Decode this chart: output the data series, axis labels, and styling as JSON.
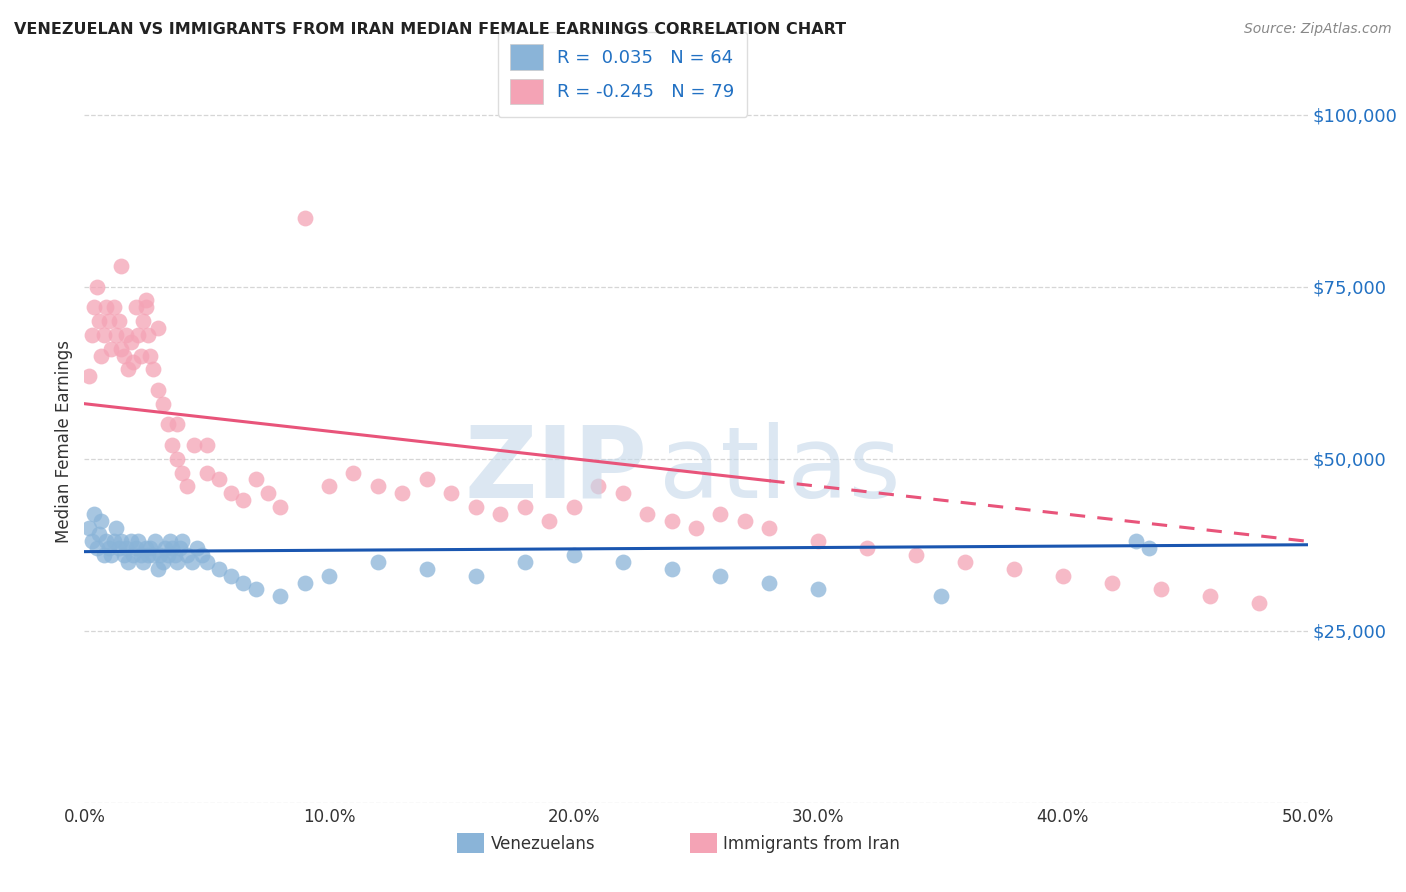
{
  "title": "VENEZUELAN VS IMMIGRANTS FROM IRAN MEDIAN FEMALE EARNINGS CORRELATION CHART",
  "source": "Source: ZipAtlas.com",
  "ylabel": "Median Female Earnings",
  "yticks": [
    0,
    25000,
    50000,
    75000,
    100000
  ],
  "ytick_labels": [
    "",
    "$25,000",
    "$50,000",
    "$75,000",
    "$100,000"
  ],
  "xlim": [
    0.0,
    0.5
  ],
  "ylim": [
    0,
    105000
  ],
  "venezuelans_color": "#8ab4d8",
  "iran_color": "#f4a3b5",
  "trendline_venezuela_color": "#1a56b0",
  "trendline_iran_color": "#e8547a",
  "watermark_zip": "ZIP",
  "watermark_atlas": "atlas",
  "background_color": "#ffffff",
  "grid_color": "#cccccc",
  "venezuelans_x": [
    0.002,
    0.003,
    0.004,
    0.005,
    0.006,
    0.007,
    0.008,
    0.009,
    0.01,
    0.011,
    0.012,
    0.013,
    0.014,
    0.015,
    0.016,
    0.017,
    0.018,
    0.019,
    0.02,
    0.021,
    0.022,
    0.023,
    0.024,
    0.025,
    0.026,
    0.027,
    0.028,
    0.029,
    0.03,
    0.031,
    0.032,
    0.033,
    0.034,
    0.035,
    0.036,
    0.037,
    0.038,
    0.039,
    0.04,
    0.042,
    0.044,
    0.046,
    0.048,
    0.05,
    0.055,
    0.06,
    0.065,
    0.07,
    0.08,
    0.09,
    0.1,
    0.12,
    0.14,
    0.16,
    0.18,
    0.2,
    0.22,
    0.24,
    0.26,
    0.28,
    0.3,
    0.35,
    0.43,
    0.435
  ],
  "venezuelans_y": [
    40000,
    38000,
    42000,
    37000,
    39000,
    41000,
    36000,
    38000,
    37000,
    36000,
    38000,
    40000,
    37000,
    38000,
    36000,
    37000,
    35000,
    38000,
    36000,
    37000,
    38000,
    36000,
    35000,
    37000,
    36000,
    37000,
    36000,
    38000,
    34000,
    36000,
    35000,
    37000,
    36000,
    38000,
    37000,
    36000,
    35000,
    37000,
    38000,
    36000,
    35000,
    37000,
    36000,
    35000,
    34000,
    33000,
    32000,
    31000,
    30000,
    32000,
    33000,
    35000,
    34000,
    33000,
    35000,
    36000,
    35000,
    34000,
    33000,
    32000,
    31000,
    30000,
    38000,
    37000
  ],
  "iran_x": [
    0.002,
    0.003,
    0.004,
    0.005,
    0.006,
    0.007,
    0.008,
    0.009,
    0.01,
    0.011,
    0.012,
    0.013,
    0.014,
    0.015,
    0.016,
    0.017,
    0.018,
    0.019,
    0.02,
    0.021,
    0.022,
    0.023,
    0.024,
    0.025,
    0.026,
    0.027,
    0.028,
    0.03,
    0.032,
    0.034,
    0.036,
    0.038,
    0.04,
    0.042,
    0.045,
    0.05,
    0.055,
    0.06,
    0.065,
    0.07,
    0.075,
    0.08,
    0.09,
    0.1,
    0.11,
    0.12,
    0.13,
    0.14,
    0.15,
    0.16,
    0.17,
    0.18,
    0.19,
    0.2,
    0.21,
    0.22,
    0.23,
    0.24,
    0.25,
    0.26,
    0.27,
    0.28,
    0.3,
    0.32,
    0.34,
    0.36,
    0.38,
    0.4,
    0.42,
    0.44,
    0.46,
    0.48,
    0.015,
    0.025,
    0.03,
    0.038,
    0.05
  ],
  "iran_y": [
    62000,
    68000,
    72000,
    75000,
    70000,
    65000,
    68000,
    72000,
    70000,
    66000,
    72000,
    68000,
    70000,
    66000,
    65000,
    68000,
    63000,
    67000,
    64000,
    72000,
    68000,
    65000,
    70000,
    72000,
    68000,
    65000,
    63000,
    60000,
    58000,
    55000,
    52000,
    50000,
    48000,
    46000,
    52000,
    48000,
    47000,
    45000,
    44000,
    47000,
    45000,
    43000,
    85000,
    46000,
    48000,
    46000,
    45000,
    47000,
    45000,
    43000,
    42000,
    43000,
    41000,
    43000,
    46000,
    45000,
    42000,
    41000,
    40000,
    42000,
    41000,
    40000,
    38000,
    37000,
    36000,
    35000,
    34000,
    33000,
    32000,
    31000,
    30000,
    29000,
    78000,
    73000,
    69000,
    55000,
    52000
  ],
  "iran_trendline_solid_end": 0.28,
  "iran_trendline_x0": 0.0,
  "iran_trendline_y0": 58000,
  "iran_trendline_x1": 0.5,
  "iran_trendline_y1": 38000,
  "ven_trendline_x0": 0.0,
  "ven_trendline_y0": 36500,
  "ven_trendline_x1": 0.5,
  "ven_trendline_y1": 37500
}
